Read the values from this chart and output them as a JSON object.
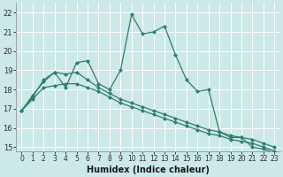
{
  "xlabel": "Humidex (Indice chaleur)",
  "bg_color": "#cce8e8",
  "grid_color": "#ffffff",
  "line_color": "#2e7d6e",
  "xlim": [
    -0.5,
    23.5
  ],
  "ylim": [
    14.8,
    22.5
  ],
  "xtick_labels": [
    "0",
    "1",
    "2",
    "3",
    "4",
    "5",
    "6",
    "7",
    "8",
    "9",
    "10",
    "11",
    "12",
    "13",
    "14",
    "15",
    "16",
    "17",
    "18",
    "19",
    "20",
    "21",
    "22",
    "23"
  ],
  "xtick_positions": [
    0,
    1,
    2,
    3,
    4,
    5,
    6,
    7,
    8,
    9,
    10,
    11,
    12,
    13,
    14,
    15,
    16,
    17,
    18,
    19,
    20,
    21,
    22,
    23
  ],
  "yticks": [
    15,
    16,
    17,
    18,
    19,
    20,
    21,
    22
  ],
  "series1_x": [
    0,
    1,
    2,
    3,
    4,
    5,
    6,
    7,
    8,
    9,
    10,
    11,
    12,
    13,
    14,
    15,
    16,
    17,
    18,
    19,
    20,
    21,
    22,
    23
  ],
  "series1_y": [
    16.9,
    17.6,
    18.5,
    18.9,
    18.1,
    19.4,
    19.5,
    18.3,
    18.0,
    19.0,
    21.9,
    20.9,
    21.0,
    21.3,
    19.8,
    18.5,
    17.9,
    18.0,
    15.8,
    15.5,
    15.5,
    15.0,
    14.9,
    14.7
  ],
  "series2_x": [
    0,
    1,
    2,
    3,
    4,
    5,
    6,
    7,
    8,
    9,
    10,
    11,
    12,
    13,
    14,
    15,
    16,
    17,
    18,
    19,
    20,
    21,
    22,
    23
  ],
  "series2_y": [
    16.9,
    17.7,
    18.4,
    18.9,
    18.8,
    18.9,
    18.5,
    18.1,
    17.8,
    17.5,
    17.3,
    17.1,
    16.9,
    16.7,
    16.5,
    16.3,
    16.1,
    15.9,
    15.8,
    15.6,
    15.5,
    15.4,
    15.2,
    15.0
  ],
  "series3_x": [
    0,
    1,
    2,
    3,
    4,
    5,
    6,
    7,
    8,
    9,
    10,
    11,
    12,
    13,
    14,
    15,
    16,
    17,
    18,
    19,
    20,
    21,
    22,
    23
  ],
  "series3_y": [
    16.9,
    17.5,
    18.1,
    18.2,
    18.3,
    18.3,
    18.1,
    17.9,
    17.6,
    17.3,
    17.1,
    16.9,
    16.7,
    16.5,
    16.3,
    16.1,
    15.9,
    15.7,
    15.6,
    15.4,
    15.3,
    15.2,
    15.0,
    14.8
  ]
}
